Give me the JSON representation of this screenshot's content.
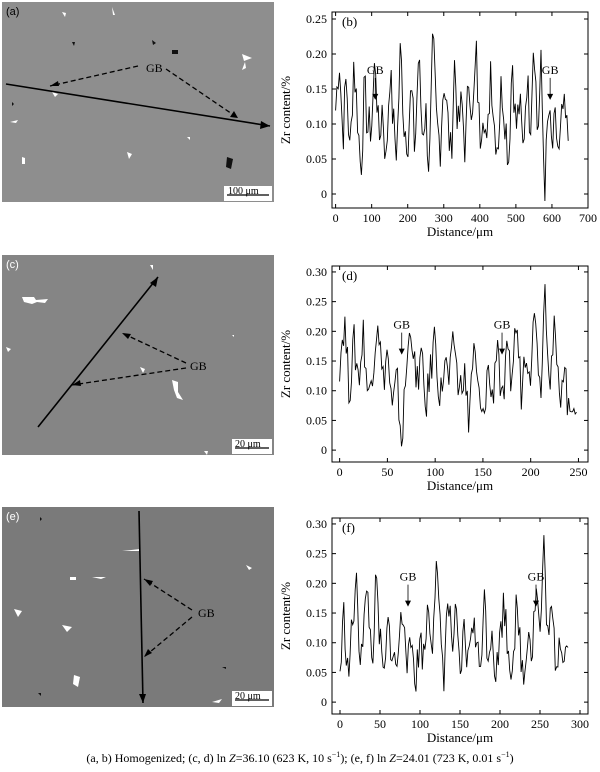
{
  "micrographs": [
    {
      "label": "(a)",
      "scale_text": "100 μm",
      "gb_text": "GB",
      "bg": "#8e8e8e"
    },
    {
      "label": "(c)",
      "scale_text": "20 μm",
      "gb_text": "GB",
      "bg": "#858585"
    },
    {
      "label": "(e)",
      "scale_text": "20 μm",
      "gb_text": "GB",
      "bg": "#7a7a7a"
    }
  ],
  "caption": {
    "part1": "(a, b) Homogenized; (c, d) ln ",
    "z1": "Z",
    "part2": "=36.10 (623 K, 10 s",
    "exp1": "−1",
    "part3": "); (e, f) ln ",
    "z2": "Z",
    "part4": "=24.01 (723 K, 0.01 s",
    "exp2": "−1",
    "part5": ")"
  },
  "chart_data": [
    {
      "type": "line",
      "panel_label": "(b)",
      "xlabel": "Distance/μm",
      "ylabel": "Zr content/%",
      "xlim": [
        -10,
        700
      ],
      "ylim": [
        -0.02,
        0.26
      ],
      "x_ticks": [
        0,
        100,
        200,
        300,
        400,
        500,
        600,
        700
      ],
      "y_ticks": [
        0,
        0.05,
        0.1,
        0.15,
        0.2,
        0.25
      ],
      "y_tick_labels": [
        "0",
        "0.05",
        "0.10",
        "0.15",
        "0.20",
        "0.25"
      ],
      "x_range": [
        0,
        645
      ],
      "series_points": [
        [
          0,
          0.12
        ],
        [
          10,
          0.2
        ],
        [
          20,
          0.08
        ],
        [
          30,
          0.17
        ],
        [
          40,
          0.05
        ],
        [
          50,
          0.19
        ],
        [
          60,
          0.12
        ],
        [
          70,
          0.03
        ],
        [
          80,
          0.15
        ],
        [
          90,
          0.09
        ],
        [
          100,
          0.1
        ],
        [
          110,
          0.2
        ],
        [
          120,
          0.07
        ],
        [
          130,
          0.13
        ],
        [
          140,
          0.04
        ],
        [
          150,
          0.18
        ],
        [
          160,
          0.1
        ],
        [
          170,
          0.06
        ],
        [
          180,
          0.21
        ],
        [
          190,
          0.1
        ],
        [
          200,
          0.08
        ],
        [
          210,
          0.15
        ],
        [
          220,
          0.06
        ],
        [
          230,
          0.2
        ],
        [
          240,
          0.09
        ],
        [
          250,
          0.12
        ],
        [
          260,
          0.03
        ],
        [
          270,
          0.22
        ],
        [
          280,
          0.1
        ],
        [
          290,
          0.07
        ],
        [
          300,
          0.17
        ],
        [
          310,
          0.11
        ],
        [
          320,
          0.05
        ],
        [
          330,
          0.19
        ],
        [
          340,
          0.09
        ],
        [
          350,
          0.13
        ],
        [
          360,
          0.06
        ],
        [
          370,
          0.18
        ],
        [
          380,
          0.1
        ],
        [
          390,
          0.2
        ],
        [
          400,
          0.08
        ],
        [
          410,
          0.14
        ],
        [
          420,
          0.05
        ],
        [
          430,
          0.19
        ],
        [
          440,
          0.1
        ],
        [
          450,
          0.07
        ],
        [
          460,
          0.16
        ],
        [
          470,
          0.11
        ],
        [
          480,
          0.05
        ],
        [
          490,
          0.2
        ],
        [
          500,
          0.09
        ],
        [
          510,
          0.13
        ],
        [
          520,
          0.06
        ],
        [
          530,
          0.17
        ],
        [
          540,
          0.1
        ],
        [
          550,
          0.24
        ],
        [
          560,
          0.08
        ],
        [
          570,
          0.18
        ],
        [
          580,
          0.0
        ],
        [
          590,
          0.12
        ],
        [
          600,
          0.06
        ],
        [
          610,
          0.1
        ],
        [
          620,
          0.05
        ],
        [
          630,
          0.12
        ],
        [
          645,
          0.08
        ]
      ],
      "gb_text": "GB",
      "annotations": [
        {
          "text": "GB",
          "x": 110
        },
        {
          "text": "GB",
          "x": 595
        }
      ]
    },
    {
      "type": "line",
      "panel_label": "(d)",
      "xlabel": "Distance/μm",
      "ylabel": "Zr content/%",
      "xlim": [
        -8,
        260
      ],
      "ylim": [
        -0.02,
        0.31
      ],
      "x_ticks": [
        0,
        50,
        100,
        150,
        200,
        250
      ],
      "y_ticks": [
        0,
        0.05,
        0.1,
        0.15,
        0.2,
        0.25,
        0.3
      ],
      "y_tick_labels": [
        "0",
        "0.05",
        "0.10",
        "0.15",
        "0.20",
        "0.25",
        "0.30"
      ],
      "x_range": [
        0,
        248
      ],
      "series_points": [
        [
          0,
          0.15
        ],
        [
          5,
          0.22
        ],
        [
          10,
          0.1
        ],
        [
          15,
          0.18
        ],
        [
          20,
          0.12
        ],
        [
          25,
          0.2
        ],
        [
          30,
          0.08
        ],
        [
          35,
          0.15
        ],
        [
          40,
          0.23
        ],
        [
          45,
          0.11
        ],
        [
          50,
          0.17
        ],
        [
          55,
          0.06
        ],
        [
          60,
          0.12
        ],
        [
          65,
          0.01
        ],
        [
          70,
          0.14
        ],
        [
          75,
          0.22
        ],
        [
          80,
          0.1
        ],
        [
          85,
          0.16
        ],
        [
          90,
          0.07
        ],
        [
          95,
          0.13
        ],
        [
          100,
          0.2
        ],
        [
          105,
          0.08
        ],
        [
          110,
          0.15
        ],
        [
          115,
          0.11
        ],
        [
          120,
          0.19
        ],
        [
          125,
          0.09
        ],
        [
          130,
          0.14
        ],
        [
          135,
          0.05
        ],
        [
          140,
          0.17
        ],
        [
          145,
          0.1
        ],
        [
          150,
          0.04
        ],
        [
          155,
          0.14
        ],
        [
          160,
          0.08
        ],
        [
          165,
          0.2
        ],
        [
          170,
          0.06
        ],
        [
          175,
          0.15
        ],
        [
          180,
          0.12
        ],
        [
          185,
          0.22
        ],
        [
          190,
          0.1
        ],
        [
          195,
          0.18
        ],
        [
          200,
          0.14
        ],
        [
          205,
          0.25
        ],
        [
          210,
          0.09
        ],
        [
          215,
          0.28
        ],
        [
          220,
          0.12
        ],
        [
          225,
          0.2
        ],
        [
          230,
          0.08
        ],
        [
          235,
          0.16
        ],
        [
          240,
          0.05
        ],
        [
          245,
          0.1
        ],
        [
          248,
          0.07
        ]
      ],
      "gb_text": "GB",
      "annotations": [
        {
          "text": "GB",
          "x": 65
        },
        {
          "text": "GB",
          "x": 170
        }
      ]
    },
    {
      "type": "line",
      "panel_label": "(f)",
      "xlabel": "Distance/μm",
      "ylabel": "Zr content/%",
      "xlim": [
        -10,
        310
      ],
      "ylim": [
        -0.02,
        0.31
      ],
      "x_ticks": [
        0,
        50,
        100,
        150,
        200,
        250,
        300
      ],
      "y_ticks": [
        0,
        0.05,
        0.1,
        0.15,
        0.2,
        0.25,
        0.3
      ],
      "y_tick_labels": [
        "0",
        "0.05",
        "0.10",
        "0.15",
        "0.20",
        "0.25",
        "0.30"
      ],
      "x_range": [
        0,
        285
      ],
      "series_points": [
        [
          0,
          0.05
        ],
        [
          5,
          0.15
        ],
        [
          10,
          0.04
        ],
        [
          15,
          0.12
        ],
        [
          20,
          0.2
        ],
        [
          25,
          0.08
        ],
        [
          30,
          0.14
        ],
        [
          35,
          0.18
        ],
        [
          40,
          0.06
        ],
        [
          45,
          0.2
        ],
        [
          50,
          0.1
        ],
        [
          55,
          0.03
        ],
        [
          60,
          0.13
        ],
        [
          65,
          0.09
        ],
        [
          70,
          0.05
        ],
        [
          75,
          0.12
        ],
        [
          80,
          0.16
        ],
        [
          85,
          0.06
        ],
        [
          90,
          0.1
        ],
        [
          95,
          0.04
        ],
        [
          100,
          0.11
        ],
        [
          105,
          0.07
        ],
        [
          110,
          0.17
        ],
        [
          115,
          0.1
        ],
        [
          120,
          0.23
        ],
        [
          125,
          0.12
        ],
        [
          130,
          0.05
        ],
        [
          135,
          0.18
        ],
        [
          140,
          0.09
        ],
        [
          145,
          0.14
        ],
        [
          150,
          0.03
        ],
        [
          155,
          0.12
        ],
        [
          160,
          0.06
        ],
        [
          165,
          0.15
        ],
        [
          170,
          0.1
        ],
        [
          175,
          0.05
        ],
        [
          180,
          0.18
        ],
        [
          185,
          0.08
        ],
        [
          190,
          0.13
        ],
        [
          195,
          0.04
        ],
        [
          200,
          0.11
        ],
        [
          205,
          0.17
        ],
        [
          210,
          0.09
        ],
        [
          215,
          0.06
        ],
        [
          220,
          0.15
        ],
        [
          225,
          0.1
        ],
        [
          230,
          0.03
        ],
        [
          235,
          0.14
        ],
        [
          240,
          0.08
        ],
        [
          245,
          0.2
        ],
        [
          250,
          0.11
        ],
        [
          255,
          0.26
        ],
        [
          260,
          0.1
        ],
        [
          265,
          0.15
        ],
        [
          270,
          0.06
        ],
        [
          275,
          0.12
        ],
        [
          280,
          0.08
        ],
        [
          285,
          0.1
        ]
      ],
      "gb_text": "GB",
      "annotations": [
        {
          "text": "GB",
          "x": 85
        },
        {
          "text": "GB",
          "x": 245
        }
      ]
    }
  ]
}
